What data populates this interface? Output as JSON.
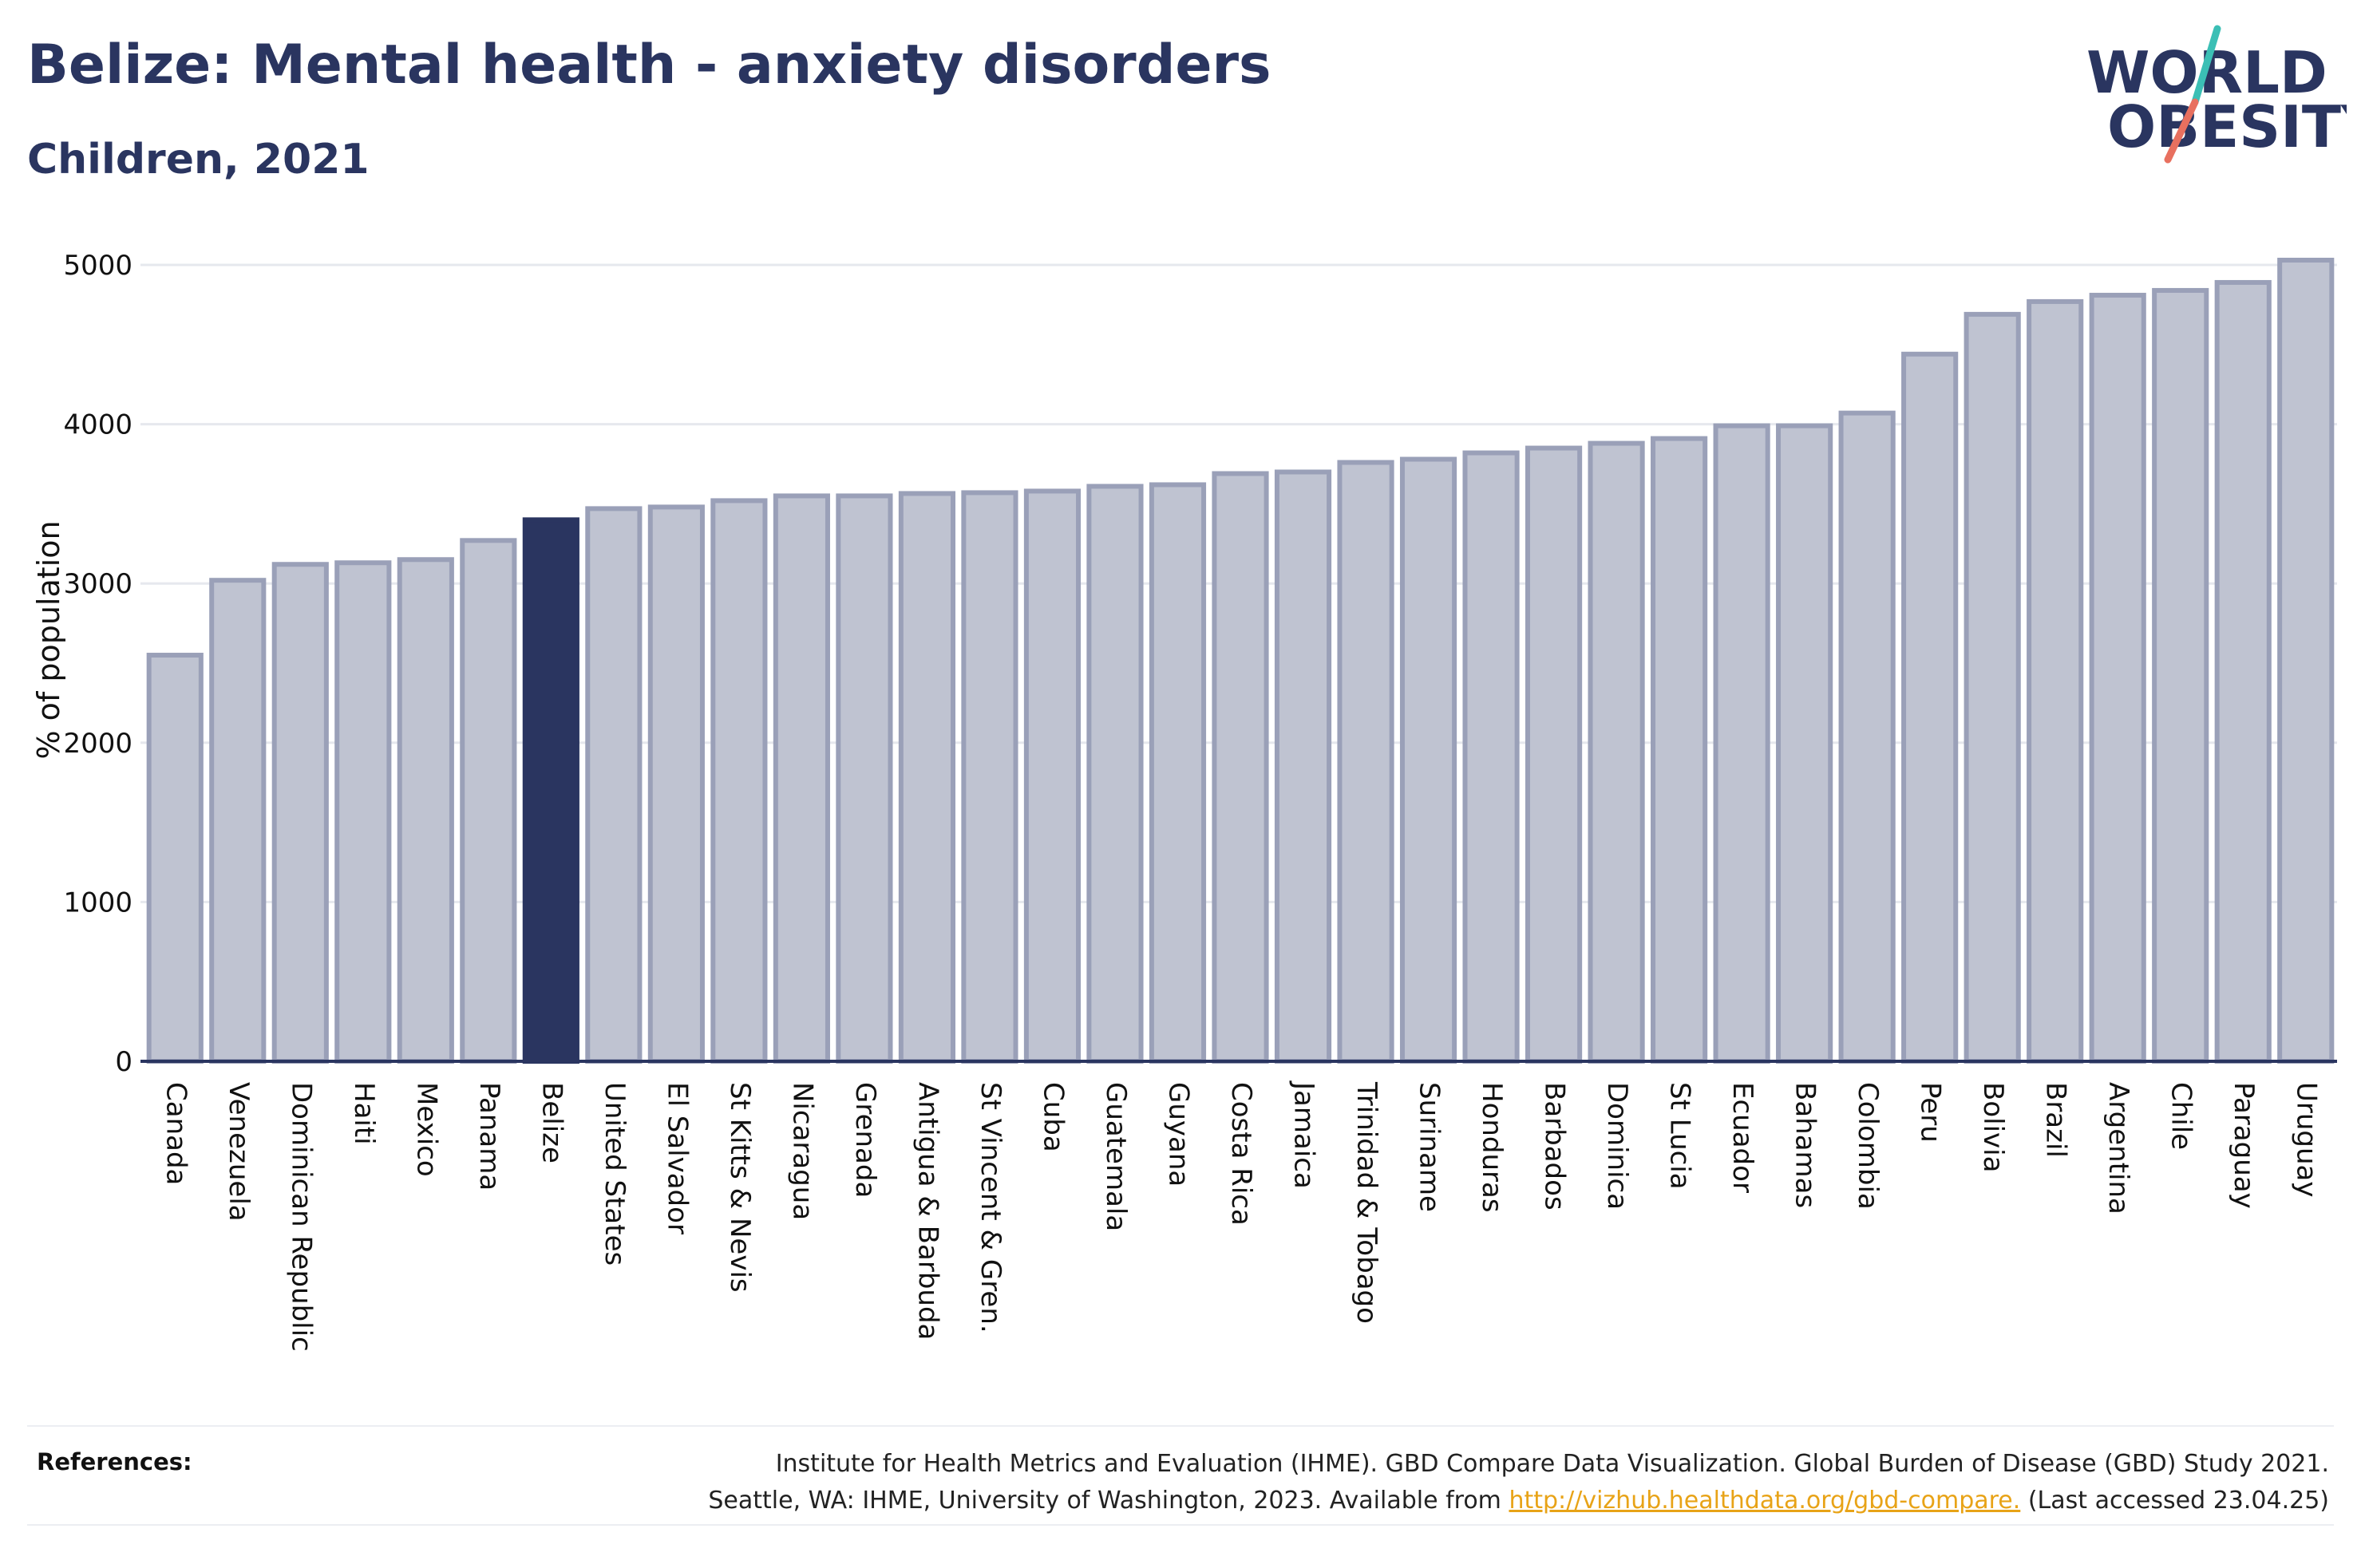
{
  "header": {
    "title": "Belize: Mental health - anxiety disorders",
    "subtitle": "Children, 2021"
  },
  "logo": {
    "line1": "WORLD",
    "line2": "OBESITY",
    "colors": {
      "text": "#2a3560",
      "slash_top": "#3bbfb5",
      "slash_bottom": "#e8705f"
    }
  },
  "colors": {
    "bar_fill": "#bfc3d1",
    "bar_stroke": "#9aa0b8",
    "highlight_fill": "#2a3560",
    "grid": "#e6e8ee",
    "axis": "#2a3560"
  },
  "chart_data": {
    "type": "bar",
    "title": "Belize: Mental health - anxiety disorders",
    "subtitle": "Children, 2021",
    "xlabel": "",
    "ylabel": "% of population",
    "ylim": [
      0,
      5000
    ],
    "yticks": [
      0,
      1000,
      2000,
      3000,
      4000,
      5000
    ],
    "grid": true,
    "highlight": "Belize",
    "categories": [
      "Canada",
      "Venezuela",
      "Dominican Republic",
      "Haiti",
      "Mexico",
      "Panama",
      "Belize",
      "United States",
      "El Salvador",
      "St Kitts & Nevis",
      "Nicaragua",
      "Grenada",
      "Antigua & Barbuda",
      "St Vincent & Gren.",
      "Cuba",
      "Guatemala",
      "Guyana",
      "Costa Rica",
      "Jamaica",
      "Trinidad & Tobago",
      "Suriname",
      "Honduras",
      "Barbados",
      "Dominica",
      "St Lucia",
      "Ecuador",
      "Bahamas",
      "Colombia",
      "Peru",
      "Bolivia",
      "Brazil",
      "Argentina",
      "Chile",
      "Paraguay",
      "Uruguay"
    ],
    "values": [
      2550,
      3020,
      3120,
      3130,
      3150,
      3270,
      3400,
      3470,
      3480,
      3520,
      3550,
      3550,
      3565,
      3570,
      3580,
      3610,
      3620,
      3690,
      3700,
      3760,
      3780,
      3820,
      3850,
      3880,
      3910,
      3990,
      3990,
      4070,
      4440,
      4690,
      4770,
      4810,
      4840,
      4890,
      5030
    ]
  },
  "references": {
    "label": "References:",
    "line1": "Institute for Health Metrics and Evaluation (IHME). GBD Compare Data Visualization. Global Burden of Disease (GBD) Study 2021.",
    "line2_prefix": "Seattle, WA: IHME, University of Washington, 2023. Available from ",
    "link": "http://vizhub.healthdata.org/gbd-compare.",
    "line2_suffix": " (Last accessed 23.04.25)"
  }
}
